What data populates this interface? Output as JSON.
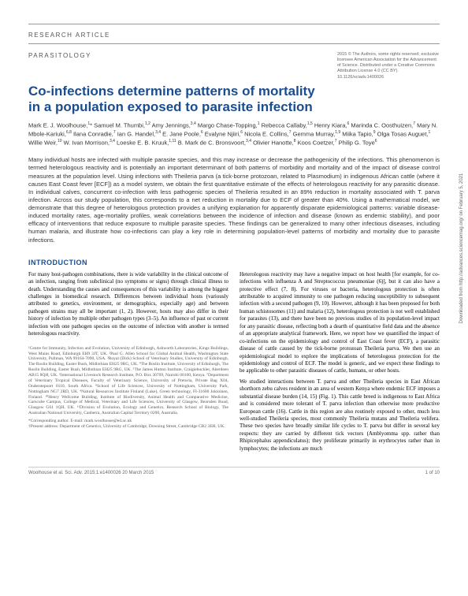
{
  "header": {
    "label": "RESEARCH ARTICLE"
  },
  "category": "PARASITOLOGY",
  "copyright": "2015 © The Authors, some rights reserved; exclusive licensee American Association for the Advancement of Science. Distributed under a Creative Commons Attribution License 4.0 (CC BY). 10.1126/sciadv.1400026",
  "title": "Co-infections determine patterns of mortality in a population exposed to parasite infection",
  "authors_html": "Mark E. J. Woolhouse,<sup>1</sup>* Samuel M. Thumbi,<sup>1,2</sup> Amy Jennings,<sup>3,4</sup> Margo Chase-Topping,<sup>1</sup> Rebecca Callaby,<sup>1,5</sup> Henry Kiara,<sup>6</sup> Marinda C. Oosthuizen,<sup>7</sup> Mary N. Mbole-Kariuki,<sup>6,8</sup> Ilana Conradie,<sup>7</sup> Ian G. Handel,<sup>3,4</sup> E. Jane Poole,<sup>6</sup> Evalyne Njiiri,<sup>6</sup> Nicola E. Collins,<sup>7</sup> Gemma Murray,<sup>1,9</sup> Miika Tapio,<sup>9</sup> Olga Tosas Auguet,<sup>1</sup> Willie Weir,<sup>10</sup> W. Ivan Morrison,<sup>3,4</sup> Loeske E. B. Kruuk,<sup>1,11</sup> B. Mark de C. Bronsvoort,<sup>3,4</sup> Olivier Hanotte,<sup>8</sup> Koos Coetzer,<sup>7</sup> Philip G. Toye<sup>6</sup>",
  "abstract": "Many individual hosts are infected with multiple parasite species, and this may increase or decrease the pathogenicity of the infections. This phenomenon is termed heterologous reactivity and is potentially an important determinant of both patterns of morbidity and mortality and of the impact of disease control measures at the population level. Using infections with Theileria parva (a tick-borne protozoan, related to Plasmodium) in indigenous African cattle (where it causes East Coast fever [ECF]) as a model system, we obtain the first quantitative estimate of the effects of heterologous reactivity for any parasitic disease. In individual calves, concurrent co-infection with less pathogenic species of Theileria resulted in an 89% reduction in mortality associated with T. parva infection. Across our study population, this corresponds to a net reduction in mortality due to ECF of greater than 40%. Using a mathematical model, we demonstrate that this degree of heterologous protection provides a unifying explanation for apparently disparate epidemiological patterns: variable disease-induced mortality rates, age-mortality profiles, weak correlations between the incidence of infection and disease (known as endemic stability), and poor efficacy of interventions that reduce exposure to multiple parasite species. These findings can be generalized to many other infectious diseases, including human malaria, and illustrate how co-infections can play a key role in determining population-level patterns of morbidity and mortality due to parasite infections.",
  "intro_heading": "INTRODUCTION",
  "intro_p1": "For many host-pathogen combinations, there is wide variability in the clinical outcome of an infection, ranging from subclinical (no symptoms or signs) through clinical illness to death. Understanding the causes and consequences of this variability is among the biggest challenges in biomedical research. Differences between individual hosts (variously attributed to genetics, environment, or demographics, especially age) and between pathogen strains may all be important (1, 2). However, hosts may also differ in their history of infection by multiple other pathogen types (3–5). An influence of past or current infection with one pathogen species on the outcome of infection with another is termed heterologous reactivity.",
  "intro_p2": "Heterologous reactivity may have a negative impact on host health [for example, for co-infections with influenza A and Streptococcus pneumoniae (6)], but it can also have a protective effect (7, 8). For viruses or bacteria, heterologous protection is often attributable to acquired immunity to one pathogen reducing susceptibility to subsequent infection with a second pathogen (9, 10). However, although it has been proposed for both human schistosomes (11) and malaria (12), heterologous protection is not well established for parasites (13), and there have been no previous studies of its population-level impact for any parasitic disease, reflecting both a dearth of quantitative field data and the absence of an appropriate analytical framework. Here, we report how we quantified the impact of co-infections on the epidemiology and control of East Coast fever (ECF), a parasitic disease of cattle caused by the tick-borne protozoan Theileria parva. We then use an epidemiological model to explore the implications of heterologous protection for the epidemiology and control of ECF. The model is generic, and we expect these findings to be applicable to other parasitic diseases of cattle, humans, or other hosts.",
  "intro_p3": "We studied interactions between T. parva and other Theileria species in East African shorthorn zebu calves resident in an area of western Kenya where endemic ECF imposes a substantial disease burden (14, 15) (Fig. 1). This cattle breed is indigenous to East Africa and is considered more tolerant of T. parva infection than otherwise more productive European cattle (16). Cattle in this region are also routinely exposed to other, much less well-studied Theileria species, most commonly Theileria mutans and Theileria velifera. These two species have broadly similar life cycles to T. parva but differ in several key respects: they are carried by different tick vectors (Amblyomma spp. rather than Rhipicephalus appendiculatus); they proliferate primarily in erythrocytes rather than in lymphocytes; the infections are much",
  "affiliations": "¹Centre for Immunity, Infection and Evolution, University of Edinburgh, Ashworth Laboratories, Kings Buildings, West Mains Road, Edinburgh EH9 3JT, UK. ²Paul G. Allen School for Global Animal Health, Washington State University, Pullman, WA 99164-7090, USA. ³Royal (Dick) School of Veterinary Studies, University of Edinburgh, The Roslin Building, Easter Bush, Midlothian EH25 9RG, UK. ⁴The Roslin Institute, University of Edinburgh, The Roslin Building, Easter Bush, Midlothian EH25 9RG, UK. ⁵The James Hutton Institute, Craigiebuckler, Aberdeen AB15 8QH, UK. ⁶International Livestock Research Institute, P.O. Box 30709, Nairobi 00100, Kenya. ⁷Department of Veterinary Tropical Diseases, Faculty of Veterinary Science, University of Pretoria, Private Bag X04, Onderstepoort 0110, South Africa. ⁸School of Life Sciences, University of Nottingham, University Park, Nottingham NG7 2RD, UK. ⁹Natural Resources Institute Finland (Luke), Green technology, FI-31600 Jokioinen, Finland. ¹⁰Henry Wellcome Building, Institute of Biodiversity, Animal Health and Comparative Medicine, Garscube Campus, College of Medical, Veterinary and Life Sciences, University of Glasgow, Bearsden Road, Glasgow G61 1QH, UK. ¹¹Division of Evolution, Ecology and Genetics, Research School of Biology, The Australian National University, Canberra, Australian Capital Territory 0200, Australia.",
  "corresponding": "*Corresponding author. E-mail: mark.woolhouse@ed.ac.uk",
  "present_address": "†Present address: Department of Genetics, University of Cambridge, Downing Street, Cambridge CB2 3EH, UK.",
  "footer": {
    "left": "Woolhouse et al. Sci. Adv. 2015;1:e1400026     20 March 2015",
    "right": "1 of 10"
  },
  "side": "Downloaded from http://advances.sciencemag.org/ on February 5, 2021",
  "colors": {
    "heading_blue": "#1a4d8f",
    "body_text": "#333333",
    "light_text": "#666666",
    "rule": "#999999"
  }
}
